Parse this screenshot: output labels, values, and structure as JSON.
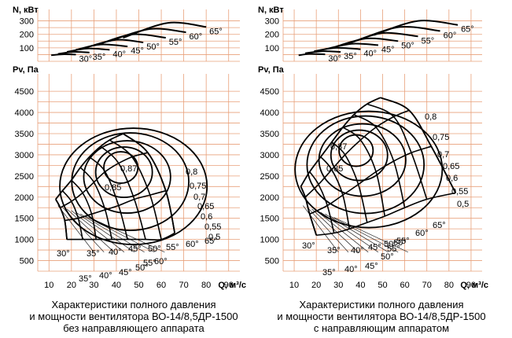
{
  "chart_data": [
    {
      "type": "line",
      "panel": "left",
      "caption": [
        "Характеристики полного давления",
        "и мощности вентилятора ВО-14/8,5ДР-1500",
        "без направляющего аппарата"
      ],
      "x_label": "Q, м³/с",
      "x_ticks": [
        "10",
        "20",
        "30",
        "40",
        "50",
        "60",
        "70",
        "80",
        "90"
      ],
      "xlim": [
        5,
        95
      ],
      "power": {
        "ylabel": "N, кВт",
        "y_ticks": [
          "100",
          "200",
          "300"
        ],
        "ylim": [
          0,
          350
        ],
        "series": [
          {
            "name": "30°",
            "points": [
              [
                11,
                45
              ],
              [
                16,
                52
              ],
              [
                22,
                50
              ]
            ]
          },
          {
            "name": "35°",
            "points": [
              [
                14,
                55
              ],
              [
                21,
                70
              ],
              [
                28,
                65
              ]
            ]
          },
          {
            "name": "40°",
            "points": [
              [
                18,
                70
              ],
              [
                27,
                95
              ],
              [
                37,
                85
              ]
            ]
          },
          {
            "name": "45°",
            "points": [
              [
                22,
                85
              ],
              [
                33,
                125
              ],
              [
                45,
                110
              ]
            ]
          },
          {
            "name": "50°",
            "points": [
              [
                27,
                105
              ],
              [
                40,
                160
              ],
              [
                52,
                140
              ]
            ]
          },
          {
            "name": "55°",
            "points": [
              [
                32,
                125
              ],
              [
                47,
                200
              ],
              [
                62,
                175
              ]
            ]
          },
          {
            "name": "60°",
            "points": [
              [
                37,
                150
              ],
              [
                55,
                240
              ],
              [
                71,
                215
              ]
            ]
          },
          {
            "name": "65°",
            "points": [
              [
                43,
                175
              ],
              [
                63,
                285
              ],
              [
                80,
                255
              ]
            ]
          }
        ]
      },
      "pressure": {
        "ylabel": "Pv, Па",
        "y_ticks": [
          "500",
          "1000",
          "1500",
          "2000",
          "2500",
          "3000",
          "3500",
          "4000",
          "4500"
        ],
        "ylim": [
          250,
          4800
        ],
        "angle_lines": [
          {
            "name": "30°",
            "points": [
              [
                13,
                1950
              ],
              [
                15,
                1750
              ],
              [
                17,
                1450
              ],
              [
                18,
                1000
              ]
            ]
          },
          {
            "name": "35°",
            "points": [
              [
                16,
                2150
              ],
              [
                20,
                1900
              ],
              [
                23,
                1500
              ],
              [
                25,
                1000
              ]
            ]
          },
          {
            "name": "40°",
            "points": [
              [
                20,
                2400
              ],
              [
                25,
                2100
              ],
              [
                29,
                1600
              ],
              [
                31,
                1000
              ]
            ]
          },
          {
            "name": "45°",
            "points": [
              [
                24,
                2700
              ],
              [
                30,
                2350
              ],
              [
                35,
                1700
              ],
              [
                38,
                1000
              ]
            ]
          },
          {
            "name": "50°",
            "points": [
              [
                28,
                2950
              ],
              [
                35,
                2600
              ],
              [
                41,
                1800
              ],
              [
                45,
                1000
              ]
            ]
          },
          {
            "name": "55°",
            "points": [
              [
                33,
                3200
              ],
              [
                41,
                2800
              ],
              [
                48,
                1950
              ],
              [
                53,
                1000
              ]
            ]
          },
          {
            "name": "60°",
            "points": [
              [
                37,
                3350
              ],
              [
                47,
                2950
              ],
              [
                55,
                2050
              ],
              [
                60,
                1000
              ]
            ]
          },
          {
            "name": "65°",
            "points": [
              [
                43,
                3500
              ],
              [
                54,
                3050
              ],
              [
                62,
                2150
              ],
              [
                66,
                1150
              ]
            ]
          }
        ],
        "efficiency_labels": [
          "0,87",
          "0,85",
          "0,8",
          "0,75",
          "0,7",
          "0,65",
          "0,6",
          "0,55",
          "0,5"
        ],
        "angle_labels": [
          "30°",
          "35°",
          "40°",
          "45°",
          "50°",
          "55°",
          "60°",
          "65°"
        ],
        "angle_labels_lower": [
          "35°",
          "40°",
          "45°",
          "50°",
          "55°",
          "60°"
        ]
      }
    },
    {
      "type": "line",
      "panel": "right",
      "caption": [
        "Характеристики полного давления",
        "и мощности вентилятора ВО-14/8,5ДР-1500",
        "с направляющим аппаратом"
      ],
      "x_label": "Q, м³/с",
      "x_ticks": [
        "10",
        "20",
        "30",
        "40",
        "50",
        "60",
        "70",
        "80",
        "90"
      ],
      "xlim": [
        5,
        95
      ],
      "power": {
        "ylabel": "N, кВт",
        "y_ticks": [
          "100",
          "200",
          "300"
        ],
        "ylim": [
          0,
          350
        ],
        "series": [
          {
            "name": "30°",
            "points": [
              [
                12,
                45
              ],
              [
                17,
                55
              ],
              [
                24,
                52
              ]
            ]
          },
          {
            "name": "35°",
            "points": [
              [
                15,
                60
              ],
              [
                23,
                75
              ],
              [
                31,
                70
              ]
            ]
          },
          {
            "name": "40°",
            "points": [
              [
                19,
                75
              ],
              [
                29,
                100
              ],
              [
                40,
                90
              ]
            ]
          },
          {
            "name": "45°",
            "points": [
              [
                24,
                90
              ],
              [
                36,
                130
              ],
              [
                48,
                120
              ]
            ]
          },
          {
            "name": "50°",
            "points": [
              [
                29,
                110
              ],
              [
                43,
                170
              ],
              [
                57,
                150
              ]
            ]
          },
          {
            "name": "55°",
            "points": [
              [
                35,
                135
              ],
              [
                50,
                210
              ],
              [
                66,
                185
              ]
            ]
          },
          {
            "name": "60°",
            "points": [
              [
                40,
                165
              ],
              [
                58,
                255
              ],
              [
                76,
                225
              ]
            ]
          },
          {
            "name": "65°",
            "points": [
              [
                46,
                195
              ],
              [
                66,
                300
              ],
              [
                84,
                270
              ]
            ]
          }
        ]
      },
      "pressure": {
        "ylabel": "Pv, Па",
        "y_ticks": [
          "500",
          "1000",
          "1500",
          "2000",
          "2500",
          "3000",
          "3500",
          "4000",
          "4500"
        ],
        "ylim": [
          250,
          4800
        ],
        "angle_lines": [
          {
            "name": "30°",
            "points": [
              [
                13,
                2250
              ],
              [
                15,
                2000
              ],
              [
                17,
                1600
              ],
              [
                20,
                1100
              ]
            ]
          },
          {
            "name": "35°",
            "points": [
              [
                17,
                2600
              ],
              [
                21,
                2300
              ],
              [
                25,
                1800
              ],
              [
                28,
                1150
              ]
            ]
          },
          {
            "name": "40°",
            "points": [
              [
                22,
                2950
              ],
              [
                27,
                2650
              ],
              [
                32,
                2050
              ],
              [
                35,
                1250
              ]
            ]
          },
          {
            "name": "45°",
            "points": [
              [
                27,
                3300
              ],
              [
                33,
                3000
              ],
              [
                39,
                2300
              ],
              [
                43,
                1400
              ]
            ]
          },
          {
            "name": "50°",
            "points": [
              [
                32,
                3650
              ],
              [
                40,
                3350
              ],
              [
                47,
                2600
              ],
              [
                51,
                1550
              ]
            ]
          },
          {
            "name": "55°",
            "points": [
              [
                37,
                3950
              ],
              [
                47,
                3650
              ],
              [
                55,
                2850
              ],
              [
                60,
                1750
              ]
            ]
          },
          {
            "name": "60°",
            "points": [
              [
                43,
                4200
              ],
              [
                55,
                3900
              ],
              [
                63,
                3050
              ],
              [
                70,
                1950
              ]
            ]
          },
          {
            "name": "65°",
            "points": [
              [
                49,
                4350
              ],
              [
                62,
                4050
              ],
              [
                72,
                3200
              ],
              [
                83,
                2100
              ]
            ]
          }
        ],
        "efficiency_labels": [
          "0,87",
          "0,85",
          "0,8",
          "0,75",
          "0,7",
          "0,65",
          "0,6",
          "0,55",
          "0,5"
        ],
        "angle_labels": [
          "30°",
          "35°",
          "40°",
          "45°",
          "50°",
          "55°",
          "60°",
          "65°"
        ],
        "angle_labels_lower": [
          "35°",
          "40°",
          "45°",
          "50°",
          "55°",
          "60°"
        ]
      }
    }
  ]
}
